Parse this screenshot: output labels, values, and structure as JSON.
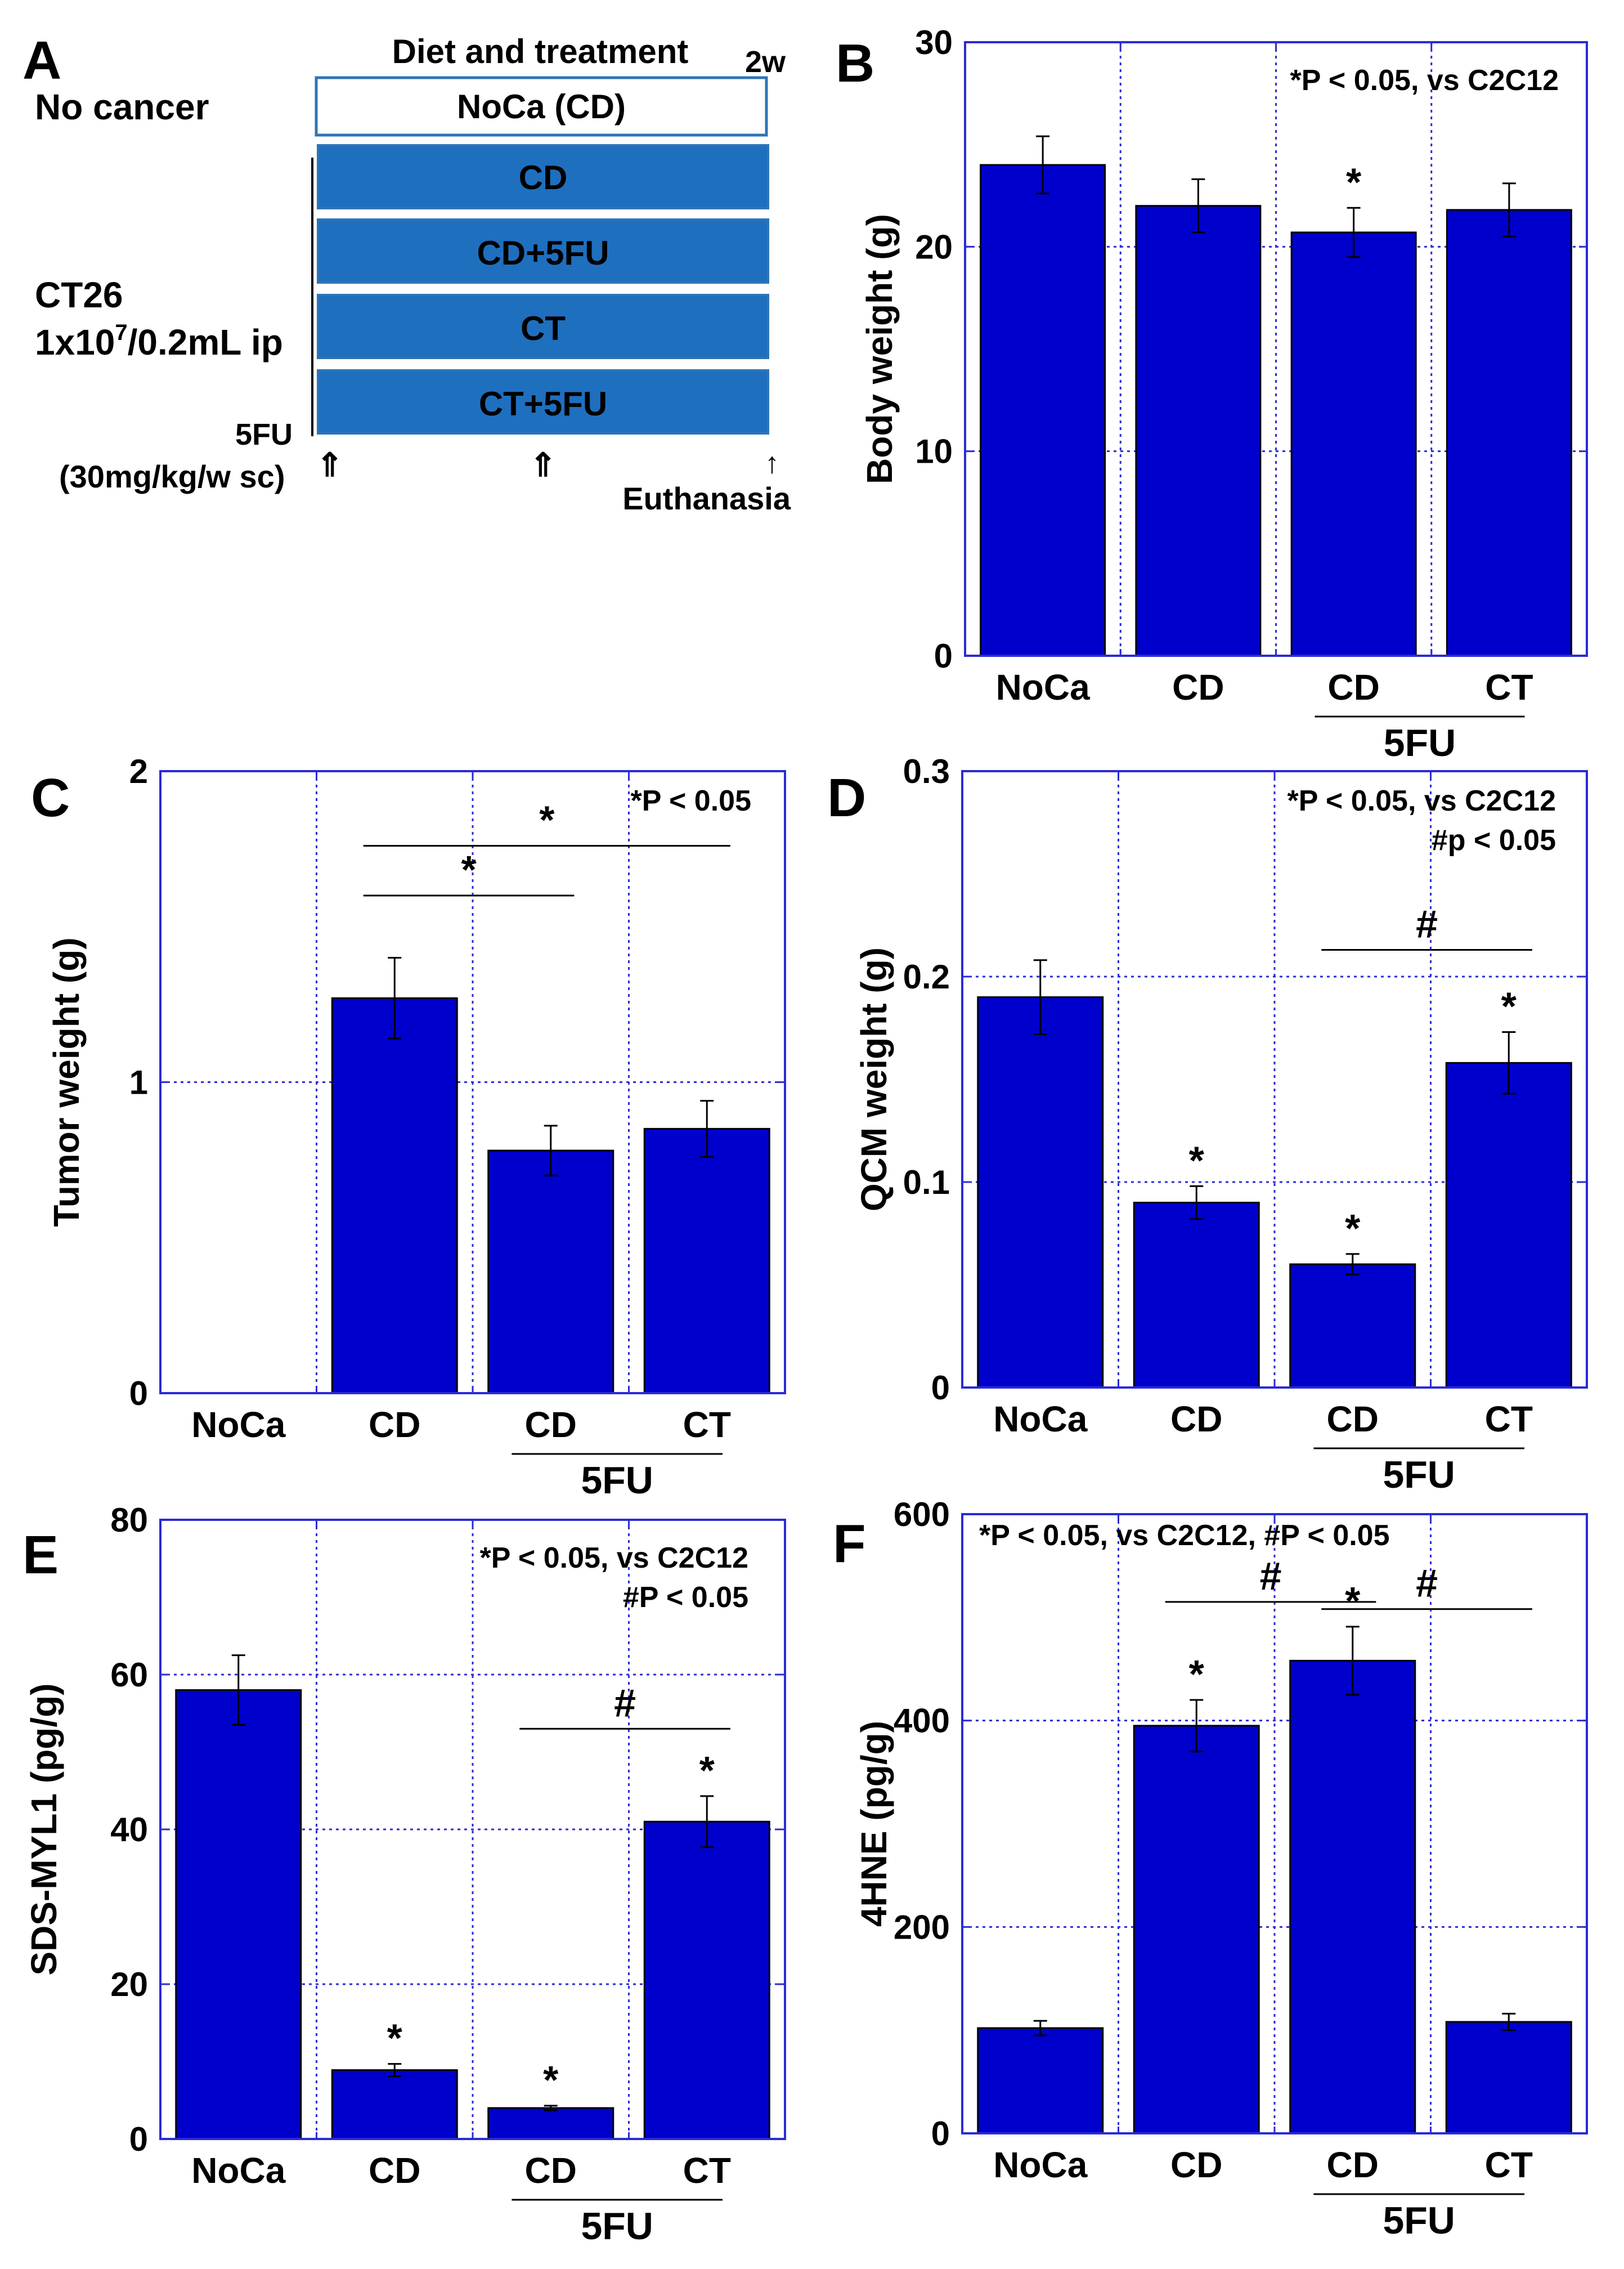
{
  "colors": {
    "bar": "#0000cc",
    "frame": "#2b2bd6",
    "grid": "#2b2bd6",
    "box_fill": "#1f6fbf",
    "box_text_light": "#ffffff",
    "box_text_dark": "#000000",
    "error": "#000000"
  },
  "diagram": {
    "panel_letter": "A",
    "header": "Diet and treatment",
    "duration": "2w",
    "left_no_cancer": "No cancer",
    "left_ct26_line1": "CT26",
    "left_ct26_line2_base": "1x10",
    "left_ct26_line2_sup": "7",
    "left_ct26_line2_rest": "/0.2mL ip",
    "fivefu_label": "5FU",
    "dose_label": "(30mg/kg/w sc)",
    "arrow_symbol": "⇑",
    "end_arrow_symbol": "↑",
    "euthanasia": "Euthanasia",
    "boxes": [
      "NoCa (CD)",
      "CD",
      "CD+5FU",
      "CT",
      "CT+5FU"
    ]
  },
  "chart_data": [
    {
      "panel": "B",
      "type": "bar",
      "categories": [
        "NoCa",
        "CD",
        "CD",
        "CT"
      ],
      "values": [
        24.0,
        22.0,
        20.7,
        21.8
      ],
      "errors": [
        1.4,
        1.3,
        1.2,
        1.3
      ],
      "sig_marks": [
        "",
        "",
        "*",
        ""
      ],
      "ylabel": "Body weight (g)",
      "ylim": [
        0,
        30
      ],
      "yticks": [
        0,
        10,
        20,
        30
      ],
      "annotation_lines": [
        "*P < 0.05, vs C2C12"
      ],
      "group_label": "5FU",
      "brackets": []
    },
    {
      "panel": "C",
      "type": "bar",
      "categories": [
        "NoCa",
        "CD",
        "CD",
        "CT"
      ],
      "values": [
        0,
        1.27,
        0.78,
        0.85
      ],
      "errors": [
        0,
        0.13,
        0.08,
        0.09
      ],
      "sig_marks": [
        "",
        "",
        "",
        ""
      ],
      "ylabel": "Tumor weight (g)",
      "ylim": [
        0,
        2
      ],
      "yticks": [
        0,
        1,
        2
      ],
      "annotation_lines": [
        "*P < 0.05"
      ],
      "group_label": "5FU",
      "brackets": [
        {
          "from": 1,
          "to": 2,
          "label": "*",
          "level": 1.6
        },
        {
          "from": 1,
          "to": 3,
          "label": "*",
          "level": 1.76
        }
      ]
    },
    {
      "panel": "D",
      "type": "bar",
      "categories": [
        "NoCa",
        "CD",
        "CD",
        "CT"
      ],
      "values": [
        0.19,
        0.09,
        0.06,
        0.158
      ],
      "errors": [
        0.018,
        0.008,
        0.005,
        0.015
      ],
      "sig_marks": [
        "",
        "*",
        "*",
        "*"
      ],
      "ylabel": "QCM weight (g)",
      "ylim": [
        0,
        0.3
      ],
      "yticks": [
        0,
        0.1,
        0.2,
        0.3
      ],
      "annotation_lines": [
        "*P < 0.05, vs C2C12",
        "#p < 0.05"
      ],
      "group_label": "5FU",
      "brackets": [
        {
          "from": 2,
          "to": 3,
          "label": "#",
          "level": 0.213
        }
      ]
    },
    {
      "panel": "E",
      "type": "bar",
      "categories": [
        "NoCa",
        "CD",
        "CD",
        "CT"
      ],
      "values": [
        58.0,
        8.9,
        4.0,
        41.0
      ],
      "errors": [
        4.5,
        0.8,
        0.3,
        3.3
      ],
      "sig_marks": [
        "",
        "*",
        "*",
        "*"
      ],
      "ylabel": "SDS-MYL1 (pg/g)",
      "ylim": [
        0,
        80
      ],
      "yticks": [
        0,
        20,
        40,
        60,
        80
      ],
      "annotation_lines": [
        "*P < 0.05, vs C2C12",
        "#P < 0.05"
      ],
      "group_label": "5FU",
      "brackets": [
        {
          "from": 2,
          "to": 3,
          "label": "#",
          "level": 53
        }
      ]
    },
    {
      "panel": "F",
      "type": "bar",
      "categories": [
        "NoCa",
        "CD",
        "CD",
        "CT"
      ],
      "values": [
        102,
        395,
        458,
        108
      ],
      "errors": [
        7,
        25,
        33,
        8
      ],
      "sig_marks": [
        "",
        "*",
        "*",
        ""
      ],
      "ylabel": "4HNE (pg/g)",
      "ylim": [
        0,
        600
      ],
      "yticks": [
        0,
        200,
        400,
        600
      ],
      "annotation_lines": [
        "*P < 0.05, vs C2C12, #P < 0.05"
      ],
      "group_label": "5FU",
      "brackets": [
        {
          "from": 1,
          "to": 2,
          "label": "#",
          "level": 515
        },
        {
          "from": 2,
          "to": 3,
          "label": "#",
          "level": 508
        }
      ]
    }
  ]
}
